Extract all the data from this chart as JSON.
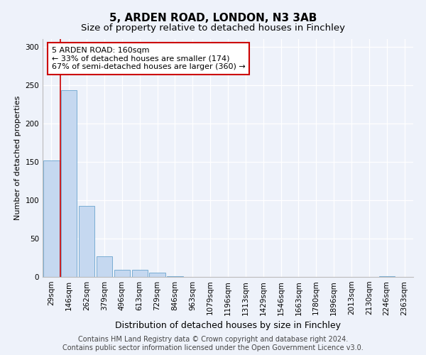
{
  "title1": "5, ARDEN ROAD, LONDON, N3 3AB",
  "title2": "Size of property relative to detached houses in Finchley",
  "xlabel": "Distribution of detached houses by size in Finchley",
  "ylabel": "Number of detached properties",
  "categories": [
    "29sqm",
    "146sqm",
    "262sqm",
    "379sqm",
    "496sqm",
    "613sqm",
    "729sqm",
    "846sqm",
    "963sqm",
    "1079sqm",
    "1196sqm",
    "1313sqm",
    "1429sqm",
    "1546sqm",
    "1663sqm",
    "1780sqm",
    "1896sqm",
    "2013sqm",
    "2130sqm",
    "2246sqm",
    "2363sqm"
  ],
  "values": [
    152,
    243,
    93,
    27,
    9,
    9,
    6,
    1,
    0,
    0,
    0,
    0,
    0,
    0,
    0,
    0,
    0,
    0,
    0,
    1,
    0
  ],
  "bar_color": "#c5d8f0",
  "bar_edge_color": "#7aadd4",
  "vline_x": 0.5,
  "vline_color": "#cc0000",
  "annotation_text": "5 ARDEN ROAD: 160sqm\n← 33% of detached houses are smaller (174)\n67% of semi-detached houses are larger (360) →",
  "annotation_box_color": "white",
  "annotation_box_edge": "#cc0000",
  "ylim": [
    0,
    310
  ],
  "yticks": [
    0,
    50,
    100,
    150,
    200,
    250,
    300
  ],
  "bg_color": "#eef2fa",
  "footer": "Contains HM Land Registry data © Crown copyright and database right 2024.\nContains public sector information licensed under the Open Government Licence v3.0.",
  "title1_fontsize": 11,
  "title2_fontsize": 9.5,
  "xlabel_fontsize": 9,
  "ylabel_fontsize": 8,
  "tick_fontsize": 7.5,
  "footer_fontsize": 7,
  "ann_fontsize": 8
}
